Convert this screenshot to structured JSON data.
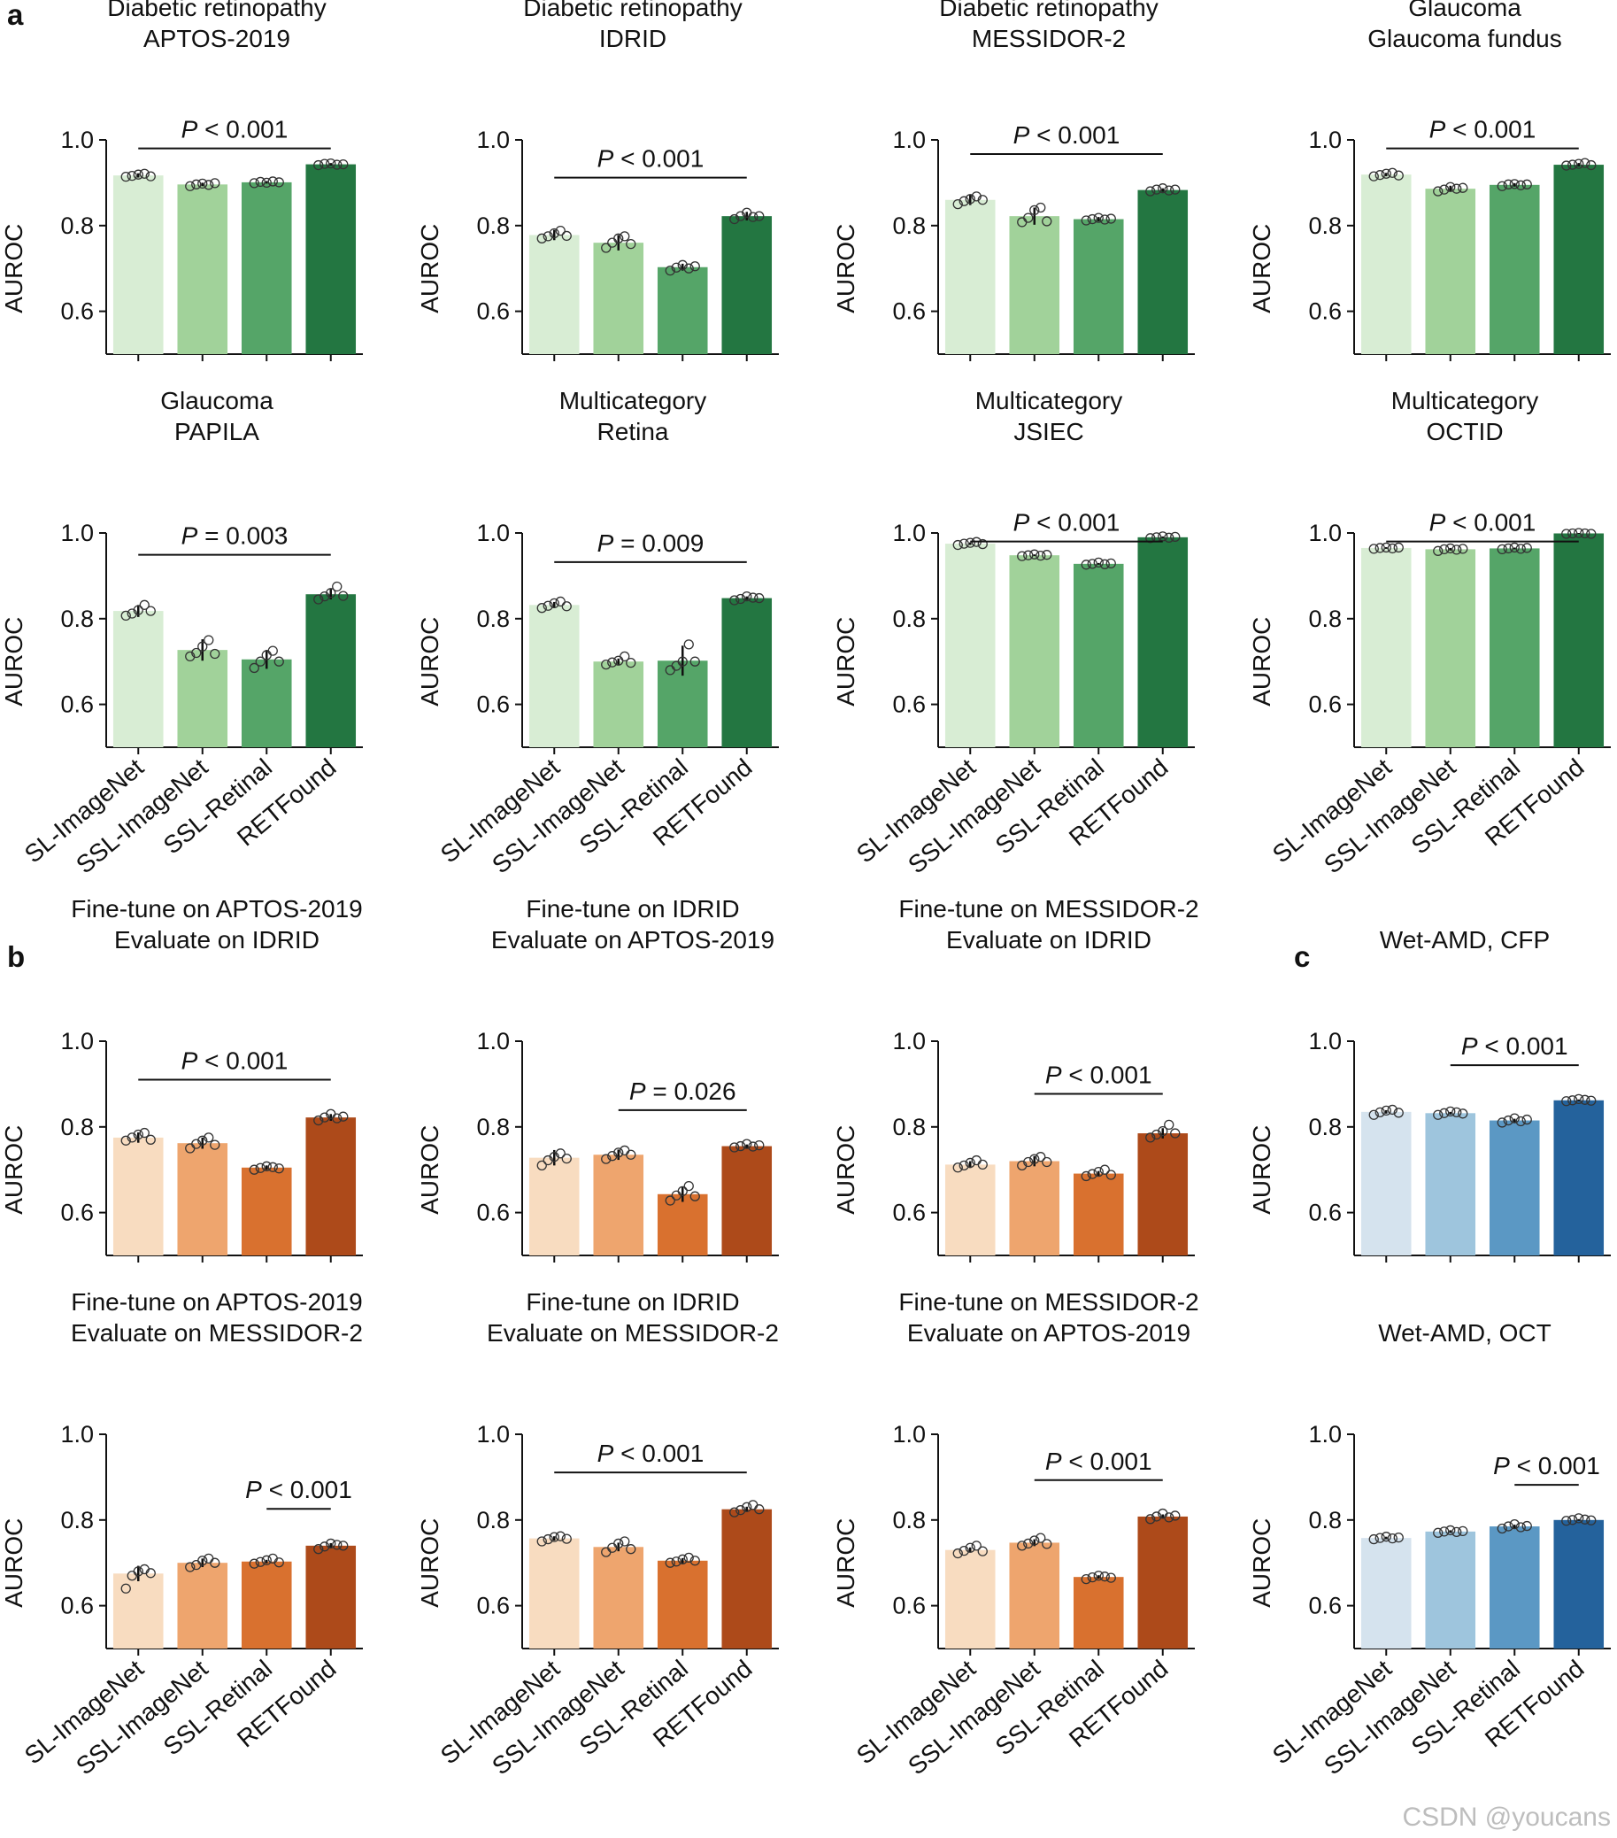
{
  "figure": {
    "watermark": "CSDN @youcans",
    "ylabel": "AUROC",
    "yticks": [
      "0.6",
      "0.8",
      "1.0"
    ],
    "categories": [
      "SL-ImageNet",
      "SSL-ImageNet",
      "SSL-Retinal",
      "RETFound"
    ],
    "p_symbol": "P"
  },
  "palettes": {
    "green": [
      "#d8edd4",
      "#a1d29a",
      "#55a568",
      "#237641"
    ],
    "orange": [
      "#f8dcc0",
      "#eea56e",
      "#d9712f",
      "#ad4a1a"
    ],
    "blue": [
      "#d5e3ee",
      "#9ec5dd",
      "#5b98c4",
      "#24629c"
    ]
  },
  "chart_data": [
    {
      "type": "bar",
      "panel_letter": "a",
      "title": [
        "Diabetic retinopathy",
        "APTOS-2019"
      ],
      "palette": "green",
      "ylim": [
        0.5,
        1.0
      ],
      "values": [
        0.917,
        0.896,
        0.901,
        0.943
      ],
      "errors": [
        0.005,
        0.004,
        0.003,
        0.003
      ],
      "points": [
        [
          0.914,
          0.916,
          0.919,
          0.921,
          0.915
        ],
        [
          0.892,
          0.896,
          0.898,
          0.895,
          0.899
        ],
        [
          0.899,
          0.902,
          0.9,
          0.903,
          0.901
        ],
        [
          0.941,
          0.944,
          0.945,
          0.942,
          0.943
        ]
      ],
      "p_text": "< 0.001",
      "p_from": 0,
      "p_to": 3
    },
    {
      "type": "bar",
      "title": [
        "Diabetic retinopathy",
        "IDRID"
      ],
      "palette": "green",
      "ylim": [
        0.5,
        1.0
      ],
      "values": [
        0.778,
        0.76,
        0.703,
        0.822
      ],
      "errors": [
        0.012,
        0.018,
        0.008,
        0.01
      ],
      "points": [
        [
          0.77,
          0.775,
          0.782,
          0.788,
          0.776
        ],
        [
          0.748,
          0.76,
          0.77,
          0.775,
          0.757
        ],
        [
          0.695,
          0.702,
          0.708,
          0.7,
          0.705
        ],
        [
          0.815,
          0.822,
          0.83,
          0.82,
          0.822
        ]
      ],
      "p_text": "< 0.001",
      "p_from": 0,
      "p_to": 3
    },
    {
      "type": "bar",
      "title": [
        "Diabetic retinopathy",
        "MESSIDOR-2"
      ],
      "palette": "green",
      "ylim": [
        0.5,
        1.0
      ],
      "values": [
        0.86,
        0.822,
        0.815,
        0.883
      ],
      "errors": [
        0.012,
        0.02,
        0.005,
        0.004
      ],
      "points": [
        [
          0.85,
          0.857,
          0.862,
          0.868,
          0.86
        ],
        [
          0.808,
          0.818,
          0.836,
          0.842,
          0.81
        ],
        [
          0.812,
          0.815,
          0.818,
          0.814,
          0.816
        ],
        [
          0.88,
          0.884,
          0.887,
          0.882,
          0.884
        ]
      ],
      "p_text": "< 0.001",
      "p_from": 0,
      "p_to": 3
    },
    {
      "type": "bar",
      "title": [
        "Glaucoma",
        "Glaucoma fundus"
      ],
      "palette": "green",
      "ylim": [
        0.5,
        1.0
      ],
      "values": [
        0.919,
        0.886,
        0.895,
        0.942
      ],
      "errors": [
        0.004,
        0.007,
        0.004,
        0.004
      ],
      "points": [
        [
          0.915,
          0.918,
          0.921,
          0.923,
          0.917
        ],
        [
          0.88,
          0.884,
          0.89,
          0.886,
          0.888
        ],
        [
          0.892,
          0.896,
          0.897,
          0.894,
          0.896
        ],
        [
          0.94,
          0.942,
          0.944,
          0.946,
          0.941
        ]
      ],
      "p_text": "< 0.001",
      "p_from": 0,
      "p_to": 3
    },
    {
      "type": "bar",
      "title": [
        "Glaucoma",
        "PAPILA"
      ],
      "palette": "green",
      "ylim": [
        0.5,
        1.0
      ],
      "values": [
        0.818,
        0.727,
        0.705,
        0.857
      ],
      "errors": [
        0.014,
        0.025,
        0.022,
        0.012
      ],
      "points": [
        [
          0.807,
          0.812,
          0.82,
          0.832,
          0.818
        ],
        [
          0.712,
          0.72,
          0.735,
          0.75,
          0.718
        ],
        [
          0.685,
          0.7,
          0.715,
          0.725,
          0.7
        ],
        [
          0.845,
          0.852,
          0.86,
          0.875,
          0.853
        ]
      ],
      "p_text": "= 0.003",
      "p_from": 0,
      "p_to": 3
    },
    {
      "type": "bar",
      "title": [
        "Multicategory",
        "Retina"
      ],
      "palette": "green",
      "ylim": [
        0.5,
        1.0
      ],
      "values": [
        0.832,
        0.7,
        0.702,
        0.848
      ],
      "errors": [
        0.007,
        0.007,
        0.035,
        0.004
      ],
      "points": [
        [
          0.825,
          0.83,
          0.836,
          0.84,
          0.829
        ],
        [
          0.693,
          0.698,
          0.702,
          0.712,
          0.697
        ],
        [
          0.68,
          0.69,
          0.7,
          0.74,
          0.7
        ],
        [
          0.843,
          0.846,
          0.852,
          0.849,
          0.848
        ]
      ],
      "p_text": "= 0.009",
      "p_from": 0,
      "p_to": 3
    },
    {
      "type": "bar",
      "title": [
        "Multicategory",
        "JSIEC"
      ],
      "palette": "green",
      "ylim": [
        0.5,
        1.0
      ],
      "values": [
        0.975,
        0.948,
        0.928,
        0.99
      ],
      "errors": [
        0.003,
        0.002,
        0.002,
        0.002
      ],
      "points": [
        [
          0.972,
          0.975,
          0.977,
          0.979,
          0.974
        ],
        [
          0.946,
          0.948,
          0.95,
          0.947,
          0.949
        ],
        [
          0.926,
          0.928,
          0.931,
          0.927,
          0.929
        ],
        [
          0.988,
          0.99,
          0.992,
          0.989,
          0.991
        ]
      ],
      "p_text": "< 0.001",
      "p_from": 0,
      "p_to": 3
    },
    {
      "type": "bar",
      "title": [
        "Multicategory",
        "OCTID"
      ],
      "palette": "green",
      "ylim": [
        0.5,
        1.0
      ],
      "values": [
        0.965,
        0.962,
        0.964,
        0.999
      ],
      "errors": [
        0.002,
        0.003,
        0.002,
        0.001
      ],
      "points": [
        [
          0.963,
          0.965,
          0.966,
          0.964,
          0.966
        ],
        [
          0.958,
          0.962,
          0.964,
          0.961,
          0.963
        ],
        [
          0.962,
          0.964,
          0.966,
          0.963,
          0.965
        ],
        [
          0.998,
          0.999,
          1.0,
          0.999,
          0.998
        ]
      ],
      "p_text": "< 0.001",
      "p_from": 0,
      "p_to": 3
    },
    {
      "type": "bar",
      "panel_letter": "b",
      "title": [
        "Fine-tune on APTOS-2019",
        "Evaluate on IDRID"
      ],
      "palette": "orange",
      "ylim": [
        0.5,
        1.0
      ],
      "values": [
        0.775,
        0.762,
        0.705,
        0.822
      ],
      "errors": [
        0.012,
        0.013,
        0.005,
        0.008
      ],
      "points": [
        [
          0.768,
          0.775,
          0.782,
          0.786,
          0.77
        ],
        [
          0.75,
          0.76,
          0.768,
          0.775,
          0.758
        ],
        [
          0.7,
          0.704,
          0.708,
          0.706,
          0.703
        ],
        [
          0.815,
          0.822,
          0.83,
          0.82,
          0.824
        ]
      ],
      "p_text": "< 0.001",
      "p_from": 0,
      "p_to": 3
    },
    {
      "type": "bar",
      "title": [
        "Fine-tune on IDRID",
        "Evaluate on APTOS-2019"
      ],
      "palette": "orange",
      "ylim": [
        0.5,
        1.0
      ],
      "values": [
        0.728,
        0.735,
        0.643,
        0.755
      ],
      "errors": [
        0.018,
        0.012,
        0.018,
        0.004
      ],
      "points": [
        [
          0.71,
          0.722,
          0.73,
          0.738,
          0.726
        ],
        [
          0.725,
          0.732,
          0.74,
          0.745,
          0.735
        ],
        [
          0.628,
          0.64,
          0.65,
          0.662,
          0.638
        ],
        [
          0.752,
          0.755,
          0.76,
          0.754,
          0.757
        ]
      ],
      "p_text": "= 0.026",
      "p_from": 1,
      "p_to": 3
    },
    {
      "type": "bar",
      "title": [
        "Fine-tune on MESSIDOR-2",
        "Evaluate on IDRID"
      ],
      "palette": "orange",
      "ylim": [
        0.5,
        1.0
      ],
      "values": [
        0.712,
        0.72,
        0.691,
        0.785
      ],
      "errors": [
        0.008,
        0.012,
        0.006,
        0.012
      ],
      "points": [
        [
          0.705,
          0.71,
          0.716,
          0.722,
          0.712
        ],
        [
          0.71,
          0.718,
          0.725,
          0.73,
          0.718
        ],
        [
          0.685,
          0.69,
          0.695,
          0.7,
          0.688
        ],
        [
          0.775,
          0.782,
          0.79,
          0.805,
          0.785
        ]
      ],
      "p_text": "< 0.001",
      "p_from": 1,
      "p_to": 3
    },
    {
      "type": "bar",
      "panel_letter": "c",
      "title": [
        "Wet-AMD, CFP"
      ],
      "palette": "blue",
      "ylim": [
        0.5,
        1.0
      ],
      "values": [
        0.835,
        0.832,
        0.815,
        0.862
      ],
      "errors": [
        0.004,
        0.003,
        0.004,
        0.002
      ],
      "points": [
        [
          0.828,
          0.834,
          0.838,
          0.84,
          0.833
        ],
        [
          0.828,
          0.832,
          0.836,
          0.834,
          0.831
        ],
        [
          0.81,
          0.815,
          0.82,
          0.813,
          0.817
        ],
        [
          0.86,
          0.862,
          0.865,
          0.863,
          0.861
        ]
      ],
      "p_text": "< 0.001",
      "p_from": 1,
      "p_to": 3
    },
    {
      "type": "bar",
      "title": [
        "Fine-tune on APTOS-2019",
        "Evaluate on MESSIDOR-2"
      ],
      "palette": "orange",
      "ylim": [
        0.5,
        1.0
      ],
      "values": [
        0.675,
        0.7,
        0.703,
        0.74
      ],
      "errors": [
        0.018,
        0.01,
        0.004,
        0.006
      ],
      "points": [
        [
          0.64,
          0.67,
          0.68,
          0.685,
          0.676
        ],
        [
          0.69,
          0.695,
          0.705,
          0.71,
          0.7
        ],
        [
          0.698,
          0.702,
          0.706,
          0.71,
          0.701
        ],
        [
          0.732,
          0.738,
          0.745,
          0.742,
          0.74
        ]
      ],
      "p_text": "< 0.001",
      "p_from": 2,
      "p_to": 3
    },
    {
      "type": "bar",
      "title": [
        "Fine-tune on IDRID",
        "Evaluate on MESSIDOR-2"
      ],
      "palette": "orange",
      "ylim": [
        0.5,
        1.0
      ],
      "values": [
        0.757,
        0.737,
        0.705,
        0.825
      ],
      "errors": [
        0.005,
        0.01,
        0.006,
        0.006
      ],
      "points": [
        [
          0.75,
          0.755,
          0.76,
          0.762,
          0.756
        ],
        [
          0.725,
          0.735,
          0.745,
          0.75,
          0.732
        ],
        [
          0.7,
          0.703,
          0.708,
          0.712,
          0.705
        ],
        [
          0.818,
          0.823,
          0.83,
          0.835,
          0.825
        ]
      ],
      "p_text": "< 0.001",
      "p_from": 0,
      "p_to": 3
    },
    {
      "type": "bar",
      "title": [
        "Fine-tune on MESSIDOR-2",
        "Evaluate on APTOS-2019"
      ],
      "palette": "orange",
      "ylim": [
        0.5,
        1.0
      ],
      "values": [
        0.73,
        0.747,
        0.667,
        0.808
      ],
      "errors": [
        0.006,
        0.008,
        0.004,
        0.005
      ],
      "points": [
        [
          0.722,
          0.728,
          0.735,
          0.74,
          0.727
        ],
        [
          0.74,
          0.745,
          0.752,
          0.758,
          0.744
        ],
        [
          0.662,
          0.666,
          0.67,
          0.668,
          0.665
        ],
        [
          0.802,
          0.808,
          0.815,
          0.806,
          0.81
        ]
      ],
      "p_text": "< 0.001",
      "p_from": 1,
      "p_to": 3
    },
    {
      "type": "bar",
      "title": [
        "Wet-AMD, OCT"
      ],
      "palette": "blue",
      "ylim": [
        0.5,
        1.0
      ],
      "values": [
        0.758,
        0.773,
        0.785,
        0.8
      ],
      "errors": [
        0.003,
        0.003,
        0.004,
        0.002
      ],
      "points": [
        [
          0.755,
          0.758,
          0.761,
          0.757,
          0.759
        ],
        [
          0.77,
          0.773,
          0.776,
          0.772,
          0.774
        ],
        [
          0.78,
          0.785,
          0.79,
          0.783,
          0.786
        ],
        [
          0.798,
          0.8,
          0.804,
          0.801,
          0.799
        ]
      ],
      "p_text": "< 0.001",
      "p_from": 2,
      "p_to": 3
    }
  ]
}
